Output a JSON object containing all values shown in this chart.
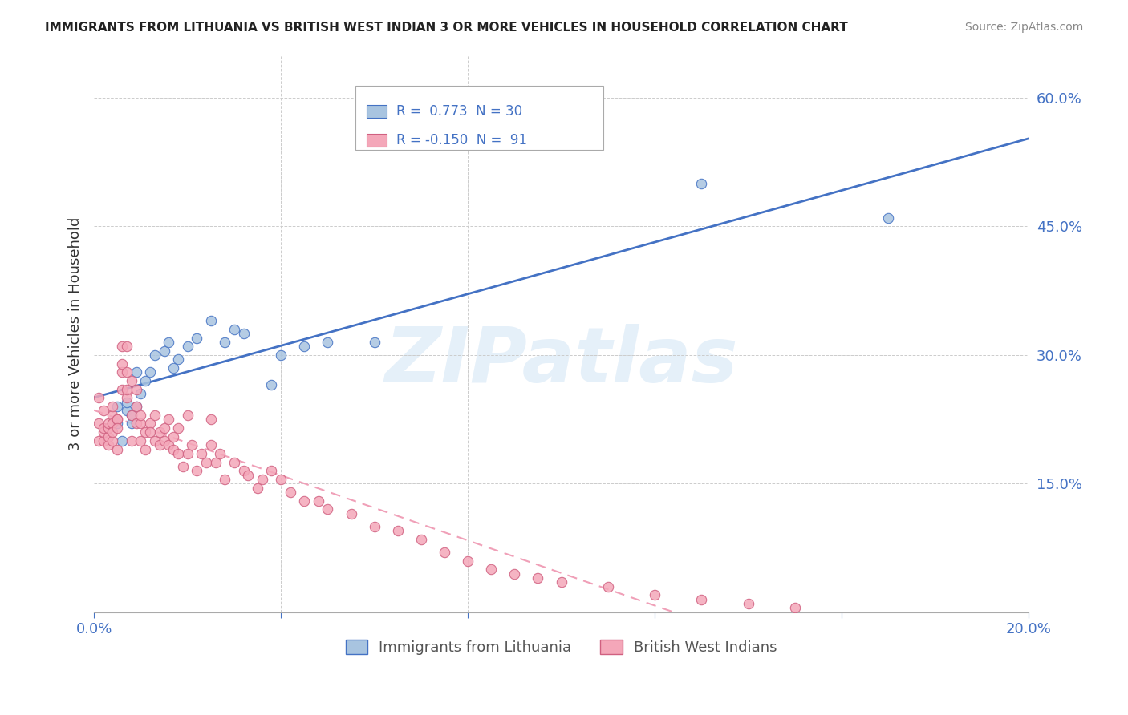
{
  "title": "IMMIGRANTS FROM LITHUANIA VS BRITISH WEST INDIAN 3 OR MORE VEHICLES IN HOUSEHOLD CORRELATION CHART",
  "source": "Source: ZipAtlas.com",
  "ylabel": "3 or more Vehicles in Household",
  "xlim": [
    0.0,
    0.2
  ],
  "ylim": [
    0.0,
    0.65
  ],
  "yticks_right": [
    0.15,
    0.3,
    0.45,
    0.6
  ],
  "ytick_right_labels": [
    "15.0%",
    "30.0%",
    "45.0%",
    "60.0%"
  ],
  "color_blue": "#a8c4e0",
  "color_pink": "#f4a7b9",
  "color_blue_text": "#4472c4",
  "color_trendline_blue": "#4472c4",
  "color_trendline_pink": "#f0a0b8",
  "background": "#ffffff",
  "blue_scatter_x": [
    0.005,
    0.005,
    0.006,
    0.007,
    0.007,
    0.008,
    0.008,
    0.009,
    0.009,
    0.01,
    0.011,
    0.012,
    0.013,
    0.015,
    0.016,
    0.017,
    0.018,
    0.02,
    0.022,
    0.025,
    0.028,
    0.03,
    0.032,
    0.038,
    0.04,
    0.045,
    0.05,
    0.06,
    0.13,
    0.17
  ],
  "blue_scatter_y": [
    0.22,
    0.24,
    0.2,
    0.235,
    0.245,
    0.22,
    0.23,
    0.28,
    0.24,
    0.255,
    0.27,
    0.28,
    0.3,
    0.305,
    0.315,
    0.285,
    0.295,
    0.31,
    0.32,
    0.34,
    0.315,
    0.33,
    0.325,
    0.265,
    0.3,
    0.31,
    0.315,
    0.315,
    0.5,
    0.46
  ],
  "pink_scatter_x": [
    0.001,
    0.001,
    0.001,
    0.002,
    0.002,
    0.002,
    0.002,
    0.003,
    0.003,
    0.003,
    0.003,
    0.004,
    0.004,
    0.004,
    0.004,
    0.004,
    0.005,
    0.005,
    0.005,
    0.005,
    0.006,
    0.006,
    0.006,
    0.006,
    0.007,
    0.007,
    0.007,
    0.007,
    0.008,
    0.008,
    0.008,
    0.009,
    0.009,
    0.009,
    0.01,
    0.01,
    0.01,
    0.011,
    0.011,
    0.012,
    0.012,
    0.013,
    0.013,
    0.014,
    0.014,
    0.015,
    0.015,
    0.016,
    0.016,
    0.017,
    0.017,
    0.018,
    0.018,
    0.019,
    0.02,
    0.02,
    0.021,
    0.022,
    0.023,
    0.024,
    0.025,
    0.025,
    0.026,
    0.027,
    0.028,
    0.03,
    0.032,
    0.033,
    0.035,
    0.036,
    0.038,
    0.04,
    0.042,
    0.045,
    0.048,
    0.05,
    0.055,
    0.06,
    0.065,
    0.07,
    0.075,
    0.08,
    0.085,
    0.09,
    0.095,
    0.1,
    0.11,
    0.12,
    0.13,
    0.14,
    0.15
  ],
  "pink_scatter_y": [
    0.22,
    0.25,
    0.2,
    0.235,
    0.2,
    0.21,
    0.215,
    0.195,
    0.205,
    0.215,
    0.22,
    0.23,
    0.2,
    0.22,
    0.24,
    0.21,
    0.225,
    0.19,
    0.225,
    0.215,
    0.26,
    0.28,
    0.31,
    0.29,
    0.25,
    0.26,
    0.28,
    0.31,
    0.2,
    0.23,
    0.27,
    0.22,
    0.24,
    0.26,
    0.22,
    0.2,
    0.23,
    0.21,
    0.19,
    0.22,
    0.21,
    0.2,
    0.23,
    0.195,
    0.21,
    0.215,
    0.2,
    0.195,
    0.225,
    0.19,
    0.205,
    0.185,
    0.215,
    0.17,
    0.185,
    0.23,
    0.195,
    0.165,
    0.185,
    0.175,
    0.195,
    0.225,
    0.175,
    0.185,
    0.155,
    0.175,
    0.165,
    0.16,
    0.145,
    0.155,
    0.165,
    0.155,
    0.14,
    0.13,
    0.13,
    0.12,
    0.115,
    0.1,
    0.095,
    0.085,
    0.07,
    0.06,
    0.05,
    0.045,
    0.04,
    0.035,
    0.03,
    0.02,
    0.015,
    0.01,
    0.005
  ]
}
